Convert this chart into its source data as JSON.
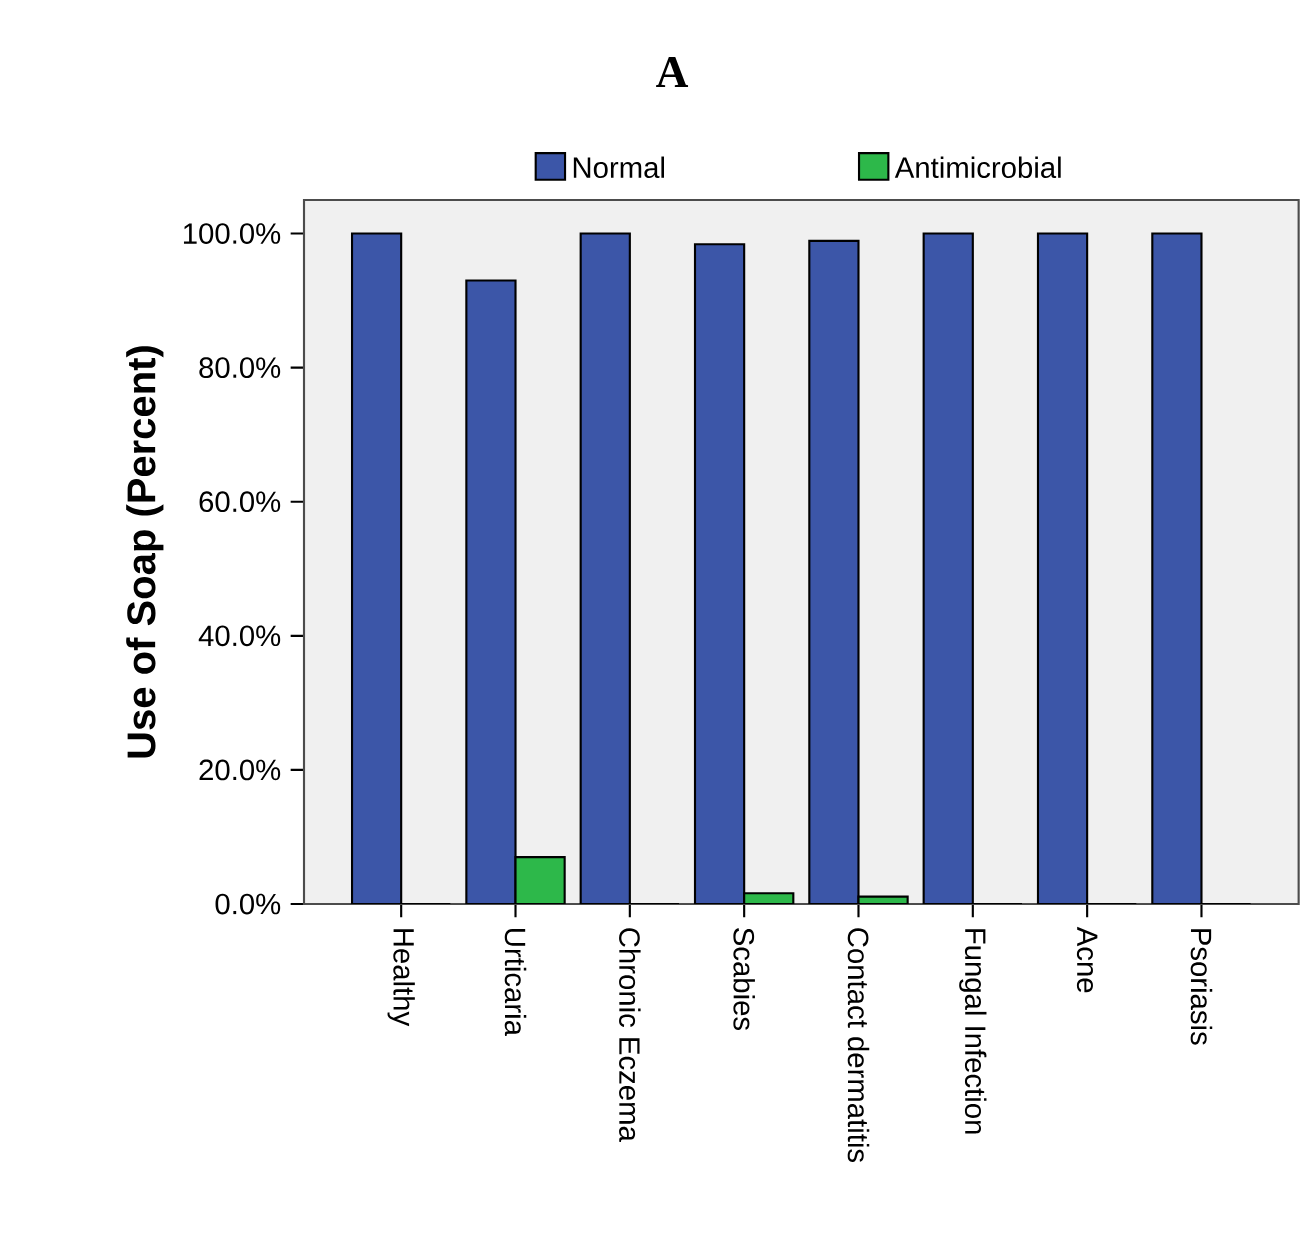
{
  "chart_data": {
    "type": "bar",
    "title": "A",
    "ylabel": "Use of Soap (Percent)",
    "categories": [
      "Healthy",
      "Urticaria",
      "Chronic Eczema",
      "Scabies",
      "Contact dermatitis",
      "Fungal Infection",
      "Acne",
      "Psoriasis"
    ],
    "series": [
      {
        "name": "Normal",
        "color": "#3c56a8",
        "values": [
          100,
          93.0,
          100,
          98.4,
          98.9,
          100,
          100,
          100
        ]
      },
      {
        "name": "Antimicrobial",
        "color": "#2db84a",
        "values": [
          0,
          7.0,
          0,
          1.6,
          1.1,
          0,
          0,
          0
        ]
      }
    ],
    "ylim": [
      0,
      105
    ],
    "yticks": [
      {
        "value": 0,
        "label": "0.0%"
      },
      {
        "value": 20,
        "label": "20.0%"
      },
      {
        "value": 40,
        "label": "40.0%"
      },
      {
        "value": 60,
        "label": "60.0%"
      },
      {
        "value": 80,
        "label": "80.0%"
      },
      {
        "value": 100,
        "label": "100.0%"
      }
    ],
    "legend": "top"
  }
}
